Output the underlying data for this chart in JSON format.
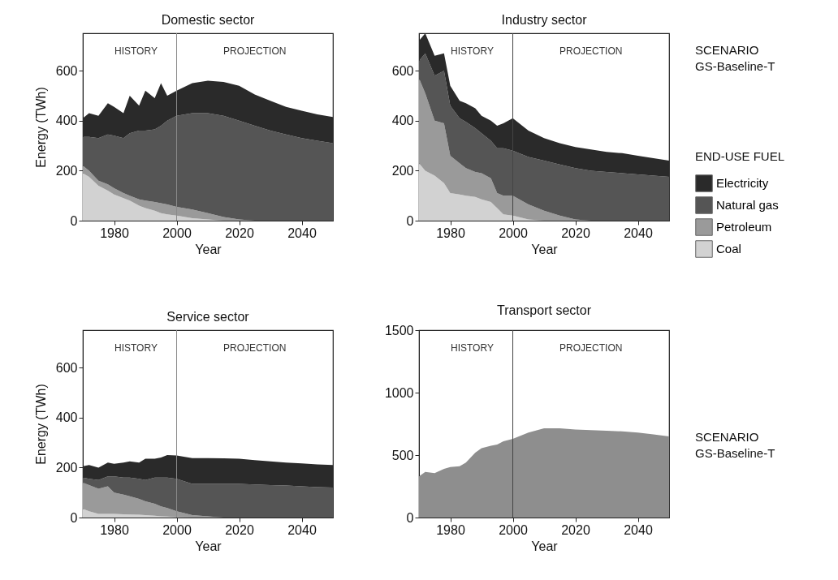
{
  "chart_data": [
    {
      "type": "area",
      "title": "Domestic sector",
      "xlabel": "Year",
      "ylabel": "Energy (TWh)",
      "stacked": true,
      "grid": false,
      "x": [
        1970,
        1972,
        1975,
        1978,
        1980,
        1983,
        1985,
        1988,
        1990,
        1993,
        1995,
        1997,
        2000,
        2005,
        2010,
        2015,
        2020,
        2025,
        2030,
        2035,
        2040,
        2045,
        2050
      ],
      "xlim": [
        1970,
        2050
      ],
      "xticks": [
        1980,
        2000,
        2020,
        2040
      ],
      "ylim": [
        0,
        750
      ],
      "yticks": [
        0,
        200,
        400,
        600
      ],
      "series": [
        {
          "color": "#d2d2d2",
          "values": [
            190,
            175,
            140,
            120,
            105,
            90,
            80,
            60,
            50,
            40,
            30,
            25,
            20,
            10,
            5,
            0,
            0,
            0,
            0,
            0,
            0,
            0,
            0
          ]
        },
        {
          "color": "#9a9a9a",
          "values": [
            30,
            25,
            20,
            25,
            25,
            20,
            20,
            25,
            30,
            35,
            40,
            40,
            35,
            35,
            25,
            15,
            5,
            0,
            0,
            0,
            0,
            0,
            0
          ]
        },
        {
          "color": "#555555",
          "values": [
            115,
            135,
            170,
            200,
            210,
            220,
            250,
            275,
            280,
            290,
            310,
            335,
            365,
            385,
            400,
            405,
            395,
            380,
            360,
            345,
            330,
            320,
            310
          ]
        },
        {
          "color": "#2a2a2a",
          "values": [
            75,
            95,
            90,
            125,
            115,
            100,
            150,
            100,
            160,
            125,
            170,
            100,
            100,
            120,
            130,
            135,
            140,
            125,
            120,
            110,
            110,
            105,
            105
          ]
        }
      ],
      "ref_lines": [
        {
          "axis": "x",
          "value": 2000,
          "color": "#8a8a8a"
        }
      ],
      "annotations": [
        "HISTORY",
        "PROJECTION"
      ]
    },
    {
      "type": "area",
      "title": "Industry sector",
      "xlabel": "Year",
      "stacked": true,
      "legend": "right",
      "legend_title": "END-USE FUEL",
      "grid": false,
      "x": [
        1970,
        1972,
        1975,
        1978,
        1980,
        1983,
        1985,
        1988,
        1990,
        1993,
        1995,
        1997,
        2000,
        2005,
        2010,
        2015,
        2020,
        2025,
        2030,
        2035,
        2040,
        2045,
        2050
      ],
      "xlim": [
        1970,
        2050
      ],
      "xticks": [
        1980,
        2000,
        2020,
        2040
      ],
      "ylim": [
        0,
        750
      ],
      "yticks": [
        0,
        200,
        400,
        600
      ],
      "series": [
        {
          "name": "Coal",
          "color": "#d2d2d2",
          "values": [
            230,
            200,
            180,
            150,
            110,
            105,
            100,
            95,
            85,
            75,
            50,
            25,
            20,
            5,
            0,
            0,
            0,
            0,
            0,
            0,
            0,
            0,
            0
          ]
        },
        {
          "name": "Petroleum",
          "color": "#9a9a9a",
          "values": [
            340,
            310,
            220,
            240,
            150,
            125,
            110,
            100,
            105,
            95,
            60,
            75,
            80,
            60,
            40,
            20,
            5,
            0,
            0,
            0,
            0,
            0,
            0
          ]
        },
        {
          "name": "Natural gas",
          "color": "#555555",
          "values": [
            70,
            160,
            180,
            210,
            200,
            180,
            185,
            175,
            160,
            150,
            180,
            190,
            180,
            190,
            200,
            205,
            205,
            200,
            195,
            190,
            185,
            180,
            175
          ]
        },
        {
          "name": "Electricity",
          "color": "#2a2a2a",
          "values": [
            80,
            80,
            80,
            70,
            80,
            70,
            75,
            80,
            70,
            80,
            90,
            100,
            130,
            105,
            90,
            85,
            85,
            85,
            80,
            80,
            75,
            70,
            65
          ]
        }
      ],
      "ref_lines": [
        {
          "axis": "x",
          "value": 2000,
          "color": "#444444"
        }
      ],
      "annotations": [
        "HISTORY",
        "PROJECTION",
        "SCENARIO GS-Baseline-T"
      ]
    },
    {
      "type": "area",
      "title": "Service sector",
      "xlabel": "Year",
      "ylabel": "Energy (TWh)",
      "stacked": true,
      "grid": false,
      "x": [
        1970,
        1972,
        1975,
        1978,
        1980,
        1983,
        1985,
        1988,
        1990,
        1993,
        1995,
        1997,
        2000,
        2005,
        2010,
        2015,
        2020,
        2025,
        2030,
        2035,
        2040,
        2045,
        2050
      ],
      "xlim": [
        1970,
        2050
      ],
      "xticks": [
        1980,
        2000,
        2020,
        2040
      ],
      "ylim": [
        0,
        750
      ],
      "yticks": [
        0,
        200,
        400,
        600
      ],
      "series": [
        {
          "color": "#d2d2d2",
          "values": [
            35,
            25,
            15,
            15,
            15,
            13,
            12,
            11,
            10,
            7,
            5,
            4,
            2,
            0,
            0,
            0,
            0,
            0,
            0,
            0,
            0,
            0,
            0
          ]
        },
        {
          "color": "#9a9a9a",
          "values": [
            105,
            105,
            100,
            110,
            85,
            79,
            73,
            64,
            55,
            48,
            40,
            34,
            23,
            10,
            5,
            0,
            0,
            0,
            0,
            0,
            0,
            0,
            0
          ]
        },
        {
          "color": "#555555",
          "values": [
            20,
            25,
            35,
            40,
            65,
            68,
            75,
            80,
            85,
            105,
            115,
            122,
            130,
            125,
            130,
            135,
            135,
            132,
            130,
            128,
            125,
            122,
            120
          ]
        },
        {
          "color": "#2a2a2a",
          "values": [
            45,
            55,
            50,
            55,
            50,
            60,
            65,
            65,
            85,
            75,
            80,
            90,
            93,
            103,
            103,
            102,
            100,
            98,
            95,
            92,
            92,
            91,
            90
          ]
        }
      ],
      "ref_lines": [
        {
          "axis": "x",
          "value": 2000,
          "color": "#8a8a8a"
        }
      ],
      "annotations": [
        "HISTORY",
        "PROJECTION"
      ]
    },
    {
      "type": "area",
      "title": "Transport sector",
      "xlabel": "Year",
      "stacked": true,
      "grid": false,
      "x": [
        1970,
        1972,
        1975,
        1978,
        1980,
        1983,
        1985,
        1988,
        1990,
        1993,
        1995,
        1997,
        2000,
        2005,
        2010,
        2015,
        2020,
        2025,
        2030,
        2035,
        2040,
        2045,
        2050
      ],
      "xlim": [
        1970,
        2050
      ],
      "xticks": [
        1980,
        2000,
        2020,
        2040
      ],
      "ylim": [
        0,
        1500
      ],
      "yticks": [
        0,
        500,
        1000,
        1500
      ],
      "series": [
        {
          "color": "#8e8e8e",
          "values": [
            330,
            365,
            355,
            390,
            405,
            410,
            440,
            520,
            555,
            575,
            585,
            610,
            630,
            680,
            715,
            715,
            705,
            700,
            695,
            690,
            680,
            665,
            650
          ]
        }
      ],
      "ref_lines": [
        {
          "axis": "x",
          "value": 2000,
          "color": "#444444"
        }
      ],
      "annotations": [
        "HISTORY",
        "PROJECTION",
        "SCENARIO GS-Baseline-T"
      ]
    }
  ]
}
